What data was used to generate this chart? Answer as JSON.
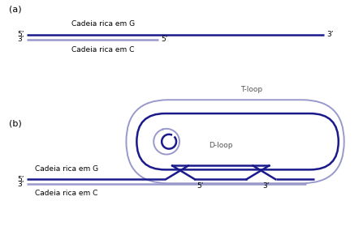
{
  "dark_blue": "#1a1a8c",
  "light_blue": "#9999cc",
  "bg_color": "#ffffff",
  "label_a": "(a)",
  "label_b": "(b)",
  "label_G": "Cadeia rica em G",
  "label_C": "Cadeia rica em C",
  "label_tloop": "T-loop",
  "label_dloop": "D-loop",
  "label_5prime": "5’",
  "label_3prime": "3’",
  "font_size_label": 8,
  "font_size_annot": 6.5,
  "fig_w": 4.47,
  "fig_h": 2.9,
  "dpi": 100
}
